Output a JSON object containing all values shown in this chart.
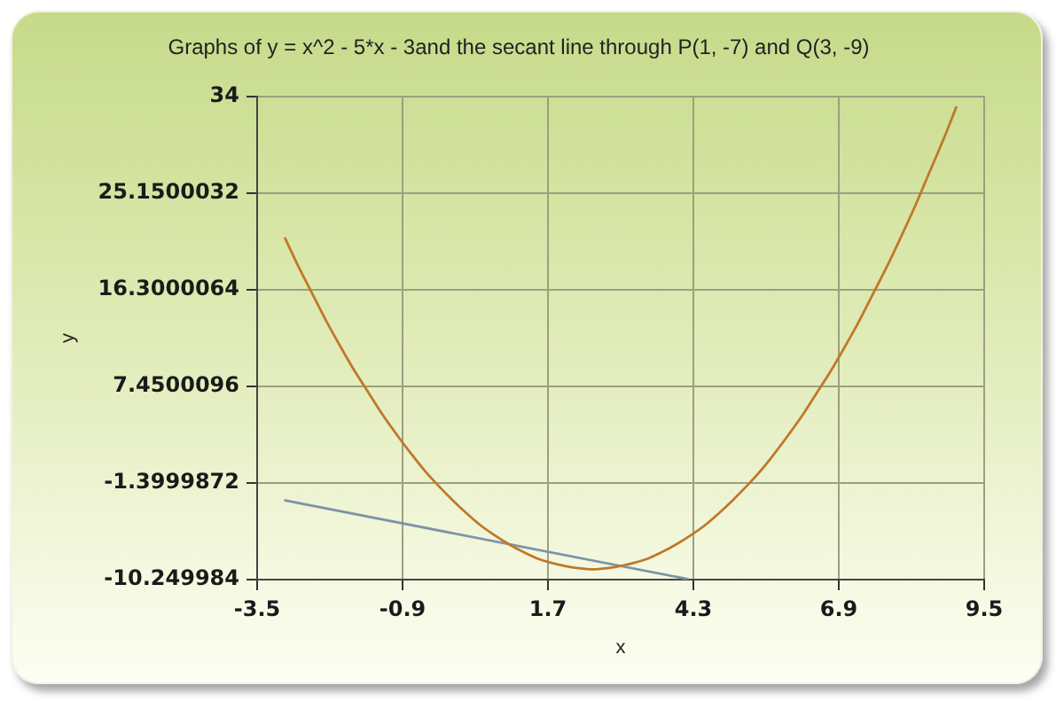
{
  "chart_data": {
    "type": "line",
    "title": "Graphs of y = x^2 - 5*x - 3and the secant line through P(1, -7) and Q(3, -9)",
    "xlabel": "x",
    "ylabel": "y",
    "series": [
      {
        "color": "#c0782a",
        "x": [
          -3,
          -2.75,
          -2.5,
          -2.25,
          -2,
          -1.75,
          -1.5,
          -1.25,
          -1,
          -0.75,
          -0.5,
          -0.25,
          0,
          0.25,
          0.5,
          0.75,
          1,
          1.25,
          1.5,
          1.75,
          2,
          2.25,
          2.5,
          2.75,
          3,
          3.25,
          3.5,
          3.75,
          4,
          4.25,
          4.5,
          4.75,
          5,
          5.25,
          5.5,
          5.75,
          6,
          6.25,
          6.5,
          6.75,
          7,
          7.25,
          7.5,
          7.75,
          8,
          8.25,
          8.5,
          8.75,
          9
        ],
        "values": [
          21,
          18.3,
          15.8,
          13.3,
          11,
          8.8,
          6.8,
          4.8,
          3,
          1.3,
          -0.3,
          -1.7,
          -3,
          -4.2,
          -5.3,
          -6.2,
          -7,
          -7.7,
          -8.3,
          -8.7,
          -9,
          -9.2,
          -9.3,
          -9.2,
          -9,
          -8.7,
          -8.3,
          -7.7,
          -7,
          -6.2,
          -5.3,
          -4.2,
          -3,
          -1.7,
          -0.3,
          1.3,
          3,
          4.8,
          6.8,
          8.8,
          11,
          13.3,
          15.8,
          18.3,
          21,
          23.8,
          26.8,
          29.8,
          33
        ]
      },
      {
        "color": "#7d93a8",
        "x": [
          -3,
          4.2
        ],
        "values": [
          -3,
          -10.2
        ]
      }
    ],
    "xlim": [
      -3.5,
      9.5
    ],
    "xticks": [
      -3.5,
      -0.9,
      1.7,
      4.3,
      6.9,
      9.5
    ],
    "ylim": [
      -10.249984,
      34
    ],
    "yticks": [
      -10.249984,
      -1.3999872,
      7.4500096,
      16.3000064,
      25.1500032,
      34
    ],
    "grid": true,
    "legend": false,
    "marker": "none"
  }
}
